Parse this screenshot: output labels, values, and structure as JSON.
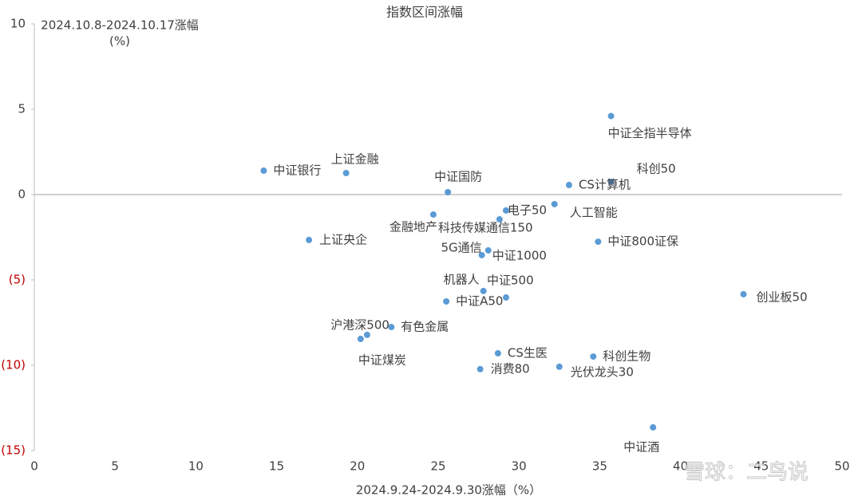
{
  "chart_data": {
    "type": "scatter",
    "title": "指数区间涨幅",
    "xlabel": "2024.9.24-2024.9.30涨幅（%）",
    "ylabel": [
      "2024.10.8-2024.10.17涨幅",
      "(%)"
    ],
    "watermark": "雪球：二鸟说",
    "color": "#5b9bd5",
    "negative_tick_color": "#c00000",
    "xlim": [
      0,
      50
    ],
    "xticks": [
      0,
      5,
      10,
      15,
      20,
      25,
      30,
      35,
      40,
      45,
      50
    ],
    "ylim": [
      -15,
      10
    ],
    "yticks": [
      {
        "value": -15,
        "label": "(15)"
      },
      {
        "value": -10,
        "label": "(10)"
      },
      {
        "value": -5,
        "label": "(5)"
      },
      0,
      5,
      10
    ],
    "point_labels": [
      "中证全指半导体",
      "科创50",
      "CS计算机",
      "中证银行",
      "上证金融",
      "中证国防",
      "电子50",
      "人工智能",
      "金融地产",
      "科技传媒通信150",
      "上证央企",
      "中证800证保",
      "5G通信",
      "中证1000",
      "机器人",
      "中证500",
      "中证A50",
      "创业板50",
      "沪港深500",
      "中证煤炭",
      "有色金属",
      "CS生医",
      "科创生物",
      "消费80",
      "光伏龙头30",
      "中证酒"
    ],
    "x": [
      35.7,
      35.7,
      33.1,
      14.2,
      19.3,
      25.6,
      29.2,
      32.2,
      24.7,
      28.8,
      17.0,
      34.9,
      27.7,
      28.1,
      27.8,
      29.2,
      25.5,
      43.9,
      20.6,
      20.2,
      22.1,
      28.7,
      34.6,
      27.6,
      32.5,
      38.3
    ],
    "values": [
      4.6,
      0.75,
      0.56,
      1.4,
      1.26,
      0.14,
      -0.93,
      -0.56,
      -1.17,
      -1.45,
      -2.66,
      -2.76,
      -3.55,
      -3.27,
      -5.65,
      -6.03,
      -6.26,
      -5.84,
      -8.22,
      -8.46,
      -7.76,
      -9.3,
      -9.49,
      -10.23,
      -10.09,
      -13.64
    ]
  }
}
